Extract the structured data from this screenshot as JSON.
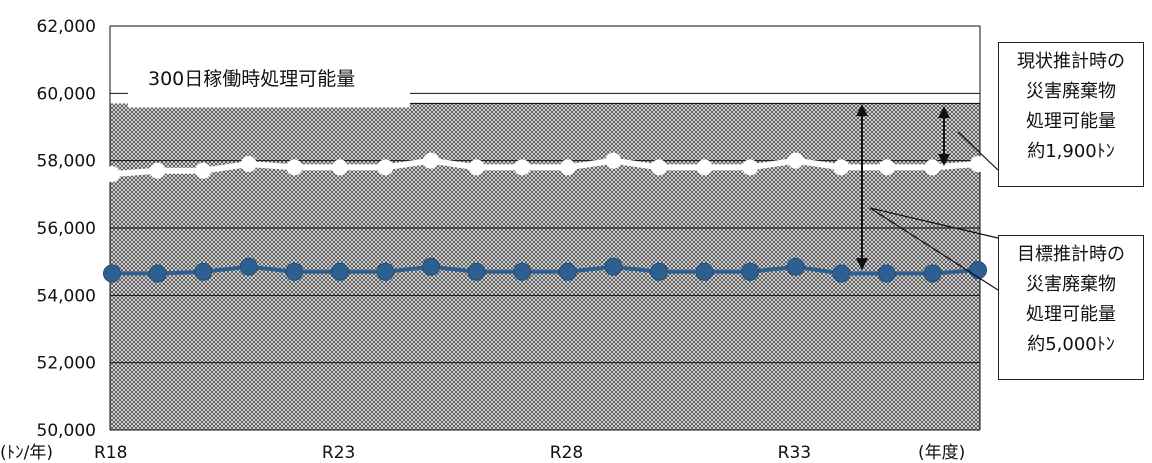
{
  "chart_data": {
    "type": "line",
    "ylim": [
      50000,
      62000
    ],
    "yticks": [
      50000,
      52000,
      54000,
      56000,
      58000,
      60000,
      62000
    ],
    "ytick_labels": [
      "50,000",
      "52,000",
      "54,000",
      "56,000",
      "58,000",
      "60,000",
      "62,000"
    ],
    "yunit_label": "(ﾄﾝ/年)",
    "xunit_label": "(年度)",
    "x": [
      "R18",
      "R19",
      "R20",
      "R21",
      "R22",
      "R23",
      "R24",
      "R25",
      "R26",
      "R27",
      "R28",
      "R29",
      "R30",
      "R31",
      "R32",
      "R33",
      "R34",
      "R35",
      "R36",
      "R37"
    ],
    "xtick_labels": [
      "R18",
      "R23",
      "R28",
      "R33"
    ],
    "grid": "horizontal",
    "series": [
      {
        "values": [
          57600,
          57700,
          57700,
          57900,
          57800,
          57800,
          57800,
          58000,
          57800,
          57800,
          57800,
          58000,
          57800,
          57800,
          57800,
          58000,
          57800,
          57800,
          57800,
          57900
        ],
        "color": "#ffffff",
        "marker": "circle"
      },
      {
        "values": [
          54650,
          54650,
          54700,
          54850,
          54700,
          54700,
          54700,
          54850,
          54700,
          54700,
          54700,
          54850,
          54700,
          54700,
          54700,
          54850,
          54650,
          54650,
          54650,
          54750
        ],
        "color": "#2e5f91",
        "marker": "circle"
      }
    ],
    "capacity": {
      "label": "300日稼働時処理可能量",
      "value": 59700
    },
    "callouts": [
      {
        "lines": [
          "現状推計時の",
          "災害廃棄物",
          "処理可能量",
          "約1,900ﾄﾝ"
        ]
      },
      {
        "lines": [
          "目標推計時の",
          "災害廃棄物",
          "処理可能量",
          "約5,000ﾄﾝ"
        ]
      }
    ]
  }
}
